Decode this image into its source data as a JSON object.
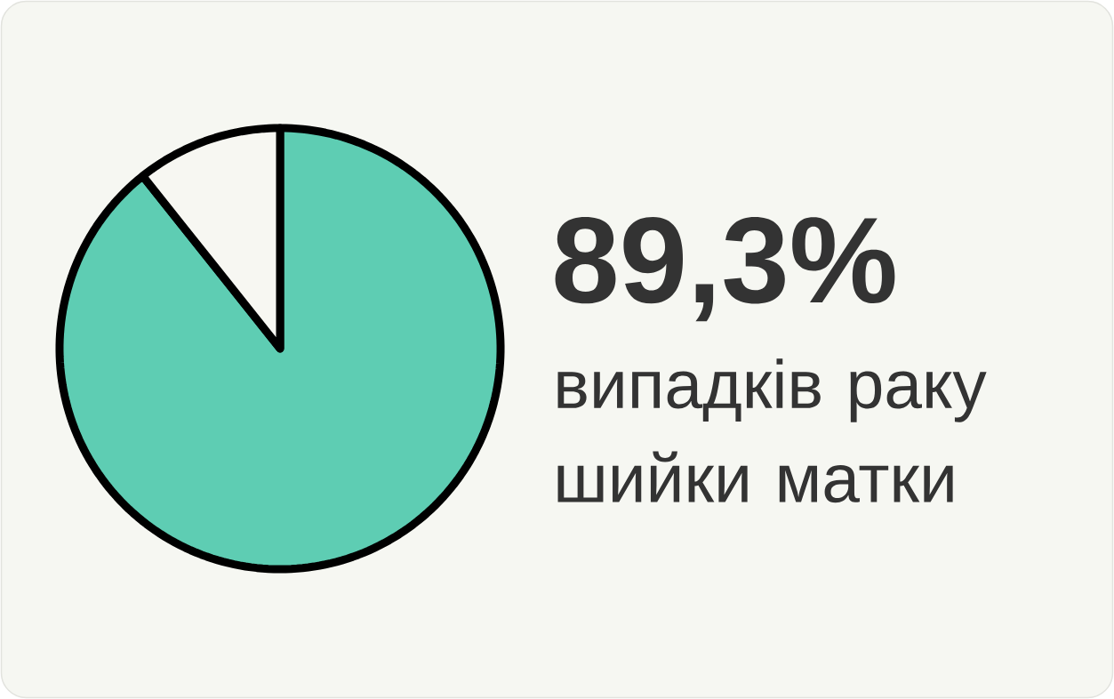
{
  "chart_data": {
    "type": "pie",
    "categories": [
      null,
      null
    ],
    "values": [
      89.3,
      10.7
    ],
    "colors": [
      "#5ecdb3",
      "#f7f7f2"
    ],
    "value_labels": [
      "89,3%",
      null
    ],
    "annotations": [
      "випадків раку шийки матки"
    ]
  }
}
